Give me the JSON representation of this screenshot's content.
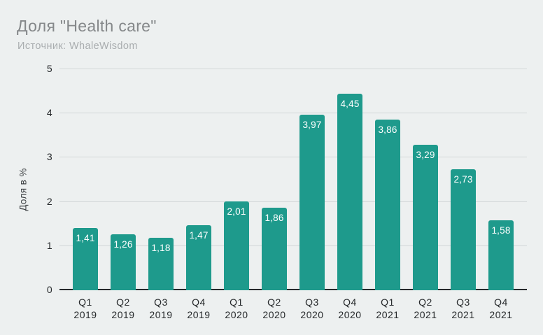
{
  "header": {
    "title": "Доля \"Health care\"",
    "source": "Источник: WhaleWisdom"
  },
  "colors": {
    "background": "#edf0f0",
    "bar": "#1e9a8c",
    "gridline": "#d3d7d8",
    "axis_line": "#26292b",
    "title_text": "#85888a",
    "subtitle_text": "#a9adaf",
    "tick_text": "#26292b",
    "bar_value_text": "#ffffff"
  },
  "chart_data": {
    "type": "bar",
    "title": "Доля \"Health care\"",
    "source": "Источник: WhaleWisdom",
    "xlabel": "",
    "ylabel": "Доля в %",
    "ylim": [
      0,
      5
    ],
    "yticks": [
      0,
      1,
      2,
      3,
      4,
      5
    ],
    "grid": true,
    "legend": false,
    "bar_color": "#1e9a8c",
    "categories": [
      "Q1 2019",
      "Q2 2019",
      "Q3 2019",
      "Q4 2019",
      "Q1 2020",
      "Q2 2020",
      "Q3 2020",
      "Q4 2020",
      "Q1 2021",
      "Q2 2021",
      "Q3 2021",
      "Q4 2021"
    ],
    "values": [
      1.41,
      1.26,
      1.18,
      1.47,
      2.01,
      1.86,
      3.97,
      4.45,
      3.86,
      3.29,
      2.73,
      1.58
    ],
    "value_labels": [
      "1,41",
      "1,26",
      "1,18",
      "1,47",
      "2,01",
      "1,86",
      "3,97",
      "4,45",
      "3,86",
      "3,29",
      "2,73",
      "1,58"
    ]
  }
}
